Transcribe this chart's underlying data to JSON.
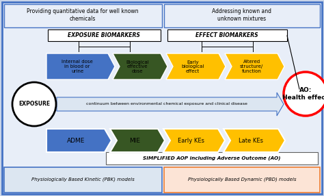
{
  "fig_bg": "#c8d4e8",
  "inner_bg": "#e8eef8",
  "top_left_text": "Providing quantitative data for well known\nchemicals",
  "top_right_text": "Addressing known and\nunknown mixtures",
  "exposure_biomarkers_text": "EXPOSURE BIOMARKERS",
  "effect_biomarkers_text": "EFFECT BIOMARKERS",
  "arrow1_text": "Internal dose\nin blood or\nurine",
  "arrow2_text": "Biological\neffective\ndose",
  "arrow3_text": "Early\nbiological\neffect",
  "arrow4_text": "Altered\nstructure/\nfunction",
  "continuum_text": "continuum between environmental chemical exposure and clinical disease",
  "exposure_text": "EXPOSURE",
  "ao_text": "AO:\nHealth effect",
  "adme_text": "ADME",
  "mie_text": "MIE",
  "early_kes_text": "Early KEs",
  "late_kes_text": "Late KEs",
  "simplified_text": "SIMPLIFIED AOP including Adverse Outcome (AO)",
  "pbk_text": "Physiologically Based Kinetic (PBK) models",
  "pbd_text": "Physiologically Based Dynamic (PBD) models",
  "color_blue": "#4472c4",
  "color_green": "#375623",
  "color_green_fill": "#375623",
  "color_gold": "#ffc000",
  "color_red": "#ff0000",
  "color_black": "#000000",
  "color_white": "#ffffff",
  "color_pbk_bg": "#dce6f1",
  "color_pbd_bg": "#fce4d6",
  "color_pbd_border": "#ed7d31"
}
